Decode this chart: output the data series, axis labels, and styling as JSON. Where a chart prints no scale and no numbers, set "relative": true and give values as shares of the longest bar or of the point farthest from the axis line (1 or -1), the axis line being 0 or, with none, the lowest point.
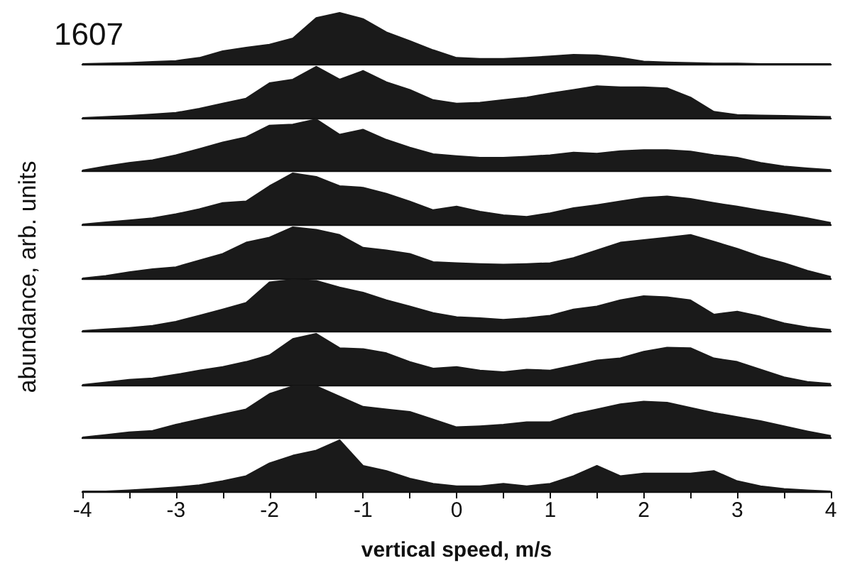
{
  "chart_data": [
    {
      "type": "area",
      "title": "1607",
      "relative": true,
      "color": "#1a1a1a",
      "xlim": [
        -4,
        4
      ],
      "tick_labels": false,
      "x": [
        -4,
        -3.75,
        -3.5,
        -3.25,
        -3,
        -2.75,
        -2.5,
        -2.25,
        -2,
        -1.75,
        -1.5,
        -1.25,
        -1,
        -0.75,
        -0.5,
        -0.25,
        0,
        0.25,
        0.5,
        0.75,
        1,
        1.25,
        1.5,
        1.75,
        2,
        2.25,
        2.5,
        2.75,
        3,
        3.25,
        3.5,
        3.75,
        4
      ],
      "values": [
        0,
        0.01,
        0.02,
        0.04,
        0.06,
        0.12,
        0.25,
        0.32,
        0.38,
        0.5,
        0.9,
        1,
        0.88,
        0.62,
        0.45,
        0.27,
        0.12,
        0.1,
        0.1,
        0.12,
        0.15,
        0.18,
        0.17,
        0.12,
        0.05,
        0.03,
        0.02,
        0.01,
        0.01,
        0,
        0,
        0,
        0
      ]
    },
    {
      "type": "area",
      "relative": true,
      "color": "#1a1a1a",
      "xlim": [
        -4,
        4
      ],
      "tick_labels": false,
      "x": [
        -4,
        -3.75,
        -3.5,
        -3.25,
        -3,
        -2.75,
        -2.5,
        -2.25,
        -2,
        -1.75,
        -1.5,
        -1.25,
        -1,
        -0.75,
        -0.5,
        -0.25,
        0,
        0.25,
        0.5,
        0.75,
        1,
        1.25,
        1.5,
        1.75,
        2,
        2.25,
        2.5,
        2.75,
        3,
        3.25,
        3.5,
        3.75,
        4
      ],
      "values": [
        0,
        0.02,
        0.04,
        0.07,
        0.1,
        0.18,
        0.28,
        0.38,
        0.68,
        0.75,
        1,
        0.75,
        0.92,
        0.7,
        0.55,
        0.35,
        0.28,
        0.3,
        0.35,
        0.4,
        0.48,
        0.55,
        0.62,
        0.6,
        0.6,
        0.58,
        0.4,
        0.12,
        0.06,
        0.05,
        0.04,
        0.03,
        0.02
      ]
    },
    {
      "type": "area",
      "relative": true,
      "color": "#1a1a1a",
      "xlim": [
        -4,
        4
      ],
      "tick_labels": false,
      "x": [
        -4,
        -3.75,
        -3.5,
        -3.25,
        -3,
        -2.75,
        -2.5,
        -2.25,
        -2,
        -1.75,
        -1.5,
        -1.25,
        -1,
        -0.75,
        -0.5,
        -0.25,
        0,
        0.25,
        0.5,
        0.75,
        1,
        1.25,
        1.5,
        1.75,
        2,
        2.25,
        2.5,
        2.75,
        3,
        3.25,
        3.5,
        3.75,
        4
      ],
      "values": [
        0,
        0.08,
        0.15,
        0.2,
        0.3,
        0.42,
        0.55,
        0.65,
        0.88,
        0.9,
        1,
        0.7,
        0.8,
        0.6,
        0.45,
        0.32,
        0.28,
        0.25,
        0.25,
        0.27,
        0.3,
        0.35,
        0.33,
        0.38,
        0.4,
        0.4,
        0.37,
        0.3,
        0.25,
        0.15,
        0.08,
        0.04,
        0.01
      ]
    },
    {
      "type": "area",
      "relative": true,
      "color": "#1a1a1a",
      "xlim": [
        -4,
        4
      ],
      "tick_labels": false,
      "x": [
        -4,
        -3.75,
        -3.5,
        -3.25,
        -3,
        -2.75,
        -2.5,
        -2.25,
        -2,
        -1.75,
        -1.5,
        -1.25,
        -1,
        -0.75,
        -0.5,
        -0.25,
        0,
        0.25,
        0.5,
        0.75,
        1,
        1.25,
        1.5,
        1.75,
        2,
        2.25,
        2.5,
        2.75,
        3,
        3.25,
        3.5,
        3.75,
        4
      ],
      "values": [
        0,
        0.04,
        0.08,
        0.12,
        0.2,
        0.3,
        0.42,
        0.45,
        0.75,
        1,
        0.93,
        0.75,
        0.72,
        0.6,
        0.45,
        0.28,
        0.35,
        0.25,
        0.18,
        0.15,
        0.22,
        0.32,
        0.38,
        0.45,
        0.52,
        0.55,
        0.5,
        0.42,
        0.35,
        0.27,
        0.2,
        0.12,
        0.03
      ]
    },
    {
      "type": "area",
      "ylabel": "abundance, arb. units",
      "relative": true,
      "color": "#1a1a1a",
      "xlim": [
        -4,
        4
      ],
      "tick_labels": false,
      "x": [
        -4,
        -3.75,
        -3.5,
        -3.25,
        -3,
        -2.75,
        -2.5,
        -2.25,
        -2,
        -1.75,
        -1.5,
        -1.25,
        -1,
        -0.75,
        -0.5,
        -0.25,
        0,
        0.25,
        0.5,
        0.75,
        1,
        1.25,
        1.5,
        1.75,
        2,
        2.25,
        2.5,
        2.75,
        3,
        3.25,
        3.5,
        3.75,
        4
      ],
      "values": [
        0,
        0.05,
        0.12,
        0.18,
        0.22,
        0.35,
        0.48,
        0.7,
        0.8,
        1,
        0.95,
        0.85,
        0.6,
        0.55,
        0.48,
        0.32,
        0.3,
        0.28,
        0.27,
        0.28,
        0.3,
        0.4,
        0.55,
        0.7,
        0.75,
        0.8,
        0.85,
        0.72,
        0.58,
        0.42,
        0.3,
        0.15,
        0.03
      ]
    },
    {
      "type": "area",
      "relative": true,
      "color": "#1a1a1a",
      "xlim": [
        -4,
        4
      ],
      "tick_labels": false,
      "x": [
        -4,
        -3.75,
        -3.5,
        -3.25,
        -3,
        -2.75,
        -2.5,
        -2.25,
        -2,
        -1.75,
        -1.5,
        -1.25,
        -1,
        -0.75,
        -0.5,
        -0.25,
        0,
        0.25,
        0.5,
        0.75,
        1,
        1.25,
        1.5,
        1.75,
        2,
        2.25,
        2.5,
        2.75,
        3,
        3.25,
        3.5,
        3.75,
        4
      ],
      "values": [
        0,
        0.03,
        0.06,
        0.1,
        0.18,
        0.3,
        0.42,
        0.55,
        0.95,
        1,
        0.98,
        0.85,
        0.75,
        0.6,
        0.48,
        0.35,
        0.27,
        0.25,
        0.22,
        0.25,
        0.3,
        0.42,
        0.48,
        0.6,
        0.68,
        0.66,
        0.6,
        0.32,
        0.38,
        0.28,
        0.15,
        0.07,
        0.02
      ]
    },
    {
      "type": "area",
      "relative": true,
      "color": "#1a1a1a",
      "xlim": [
        -4,
        4
      ],
      "tick_labels": false,
      "x": [
        -4,
        -3.75,
        -3.5,
        -3.25,
        -3,
        -2.75,
        -2.5,
        -2.25,
        -2,
        -1.75,
        -1.5,
        -1.25,
        -1,
        -0.75,
        -0.5,
        -0.25,
        0,
        0.25,
        0.5,
        0.75,
        1,
        1.25,
        1.5,
        1.75,
        2,
        2.25,
        2.5,
        2.75,
        3,
        3.25,
        3.5,
        3.75,
        4
      ],
      "values": [
        0,
        0.05,
        0.1,
        0.13,
        0.2,
        0.28,
        0.35,
        0.45,
        0.58,
        0.9,
        1,
        0.72,
        0.7,
        0.62,
        0.45,
        0.32,
        0.35,
        0.28,
        0.25,
        0.3,
        0.28,
        0.38,
        0.48,
        0.52,
        0.65,
        0.73,
        0.72,
        0.52,
        0.45,
        0.3,
        0.15,
        0.06,
        0.02
      ]
    },
    {
      "type": "area",
      "relative": true,
      "color": "#1a1a1a",
      "xlim": [
        -4,
        4
      ],
      "tick_labels": false,
      "x": [
        -4,
        -3.75,
        -3.5,
        -3.25,
        -3,
        -2.75,
        -2.5,
        -2.25,
        -2,
        -1.75,
        -1.5,
        -1.25,
        -1,
        -0.75,
        -0.5,
        -0.25,
        0,
        0.25,
        0.5,
        0.75,
        1,
        1.25,
        1.5,
        1.75,
        2,
        2.25,
        2.5,
        2.75,
        3,
        3.25,
        3.5,
        3.75,
        4
      ],
      "values": [
        0,
        0.05,
        0.1,
        0.13,
        0.25,
        0.35,
        0.45,
        0.55,
        0.85,
        1,
        1,
        0.8,
        0.6,
        0.55,
        0.5,
        0.35,
        0.2,
        0.22,
        0.25,
        0.3,
        0.3,
        0.45,
        0.55,
        0.65,
        0.7,
        0.68,
        0.58,
        0.48,
        0.4,
        0.32,
        0.22,
        0.12,
        0.03
      ]
    },
    {
      "type": "area",
      "xlabel": "vertical speed, m/s",
      "relative": true,
      "color": "#1a1a1a",
      "xlim": [
        -4,
        4
      ],
      "tick_labels": "x",
      "xticks": [
        -4,
        {
          "value": -3.5,
          "label": null
        },
        -3,
        {
          "value": -2.5,
          "label": null
        },
        -2,
        {
          "value": -1.5,
          "label": null
        },
        -1,
        {
          "value": -0.5,
          "label": null
        },
        0,
        {
          "value": 0.5,
          "label": null
        },
        1,
        {
          "value": 1.5,
          "label": null
        },
        2,
        {
          "value": 2.5,
          "label": null
        },
        3,
        {
          "value": 3.5,
          "label": null
        },
        4
      ],
      "x": [
        -4,
        -3.75,
        -3.5,
        -3.25,
        -3,
        -2.75,
        -2.5,
        -2.25,
        -2,
        -1.75,
        -1.5,
        -1.25,
        -1,
        -0.75,
        -0.5,
        -0.25,
        0,
        0.25,
        0.5,
        0.75,
        1,
        1.25,
        1.5,
        1.75,
        2,
        2.25,
        2.5,
        2.75,
        3,
        3.25,
        3.5,
        3.75,
        4
      ],
      "values": [
        0,
        0,
        0.02,
        0.05,
        0.08,
        0.12,
        0.2,
        0.3,
        0.55,
        0.7,
        0.8,
        1,
        0.5,
        0.4,
        0.25,
        0.15,
        0.1,
        0.1,
        0.15,
        0.1,
        0.15,
        0.3,
        0.5,
        0.3,
        0.35,
        0.35,
        0.35,
        0.4,
        0.2,
        0.1,
        0.05,
        0.02,
        0
      ]
    }
  ]
}
